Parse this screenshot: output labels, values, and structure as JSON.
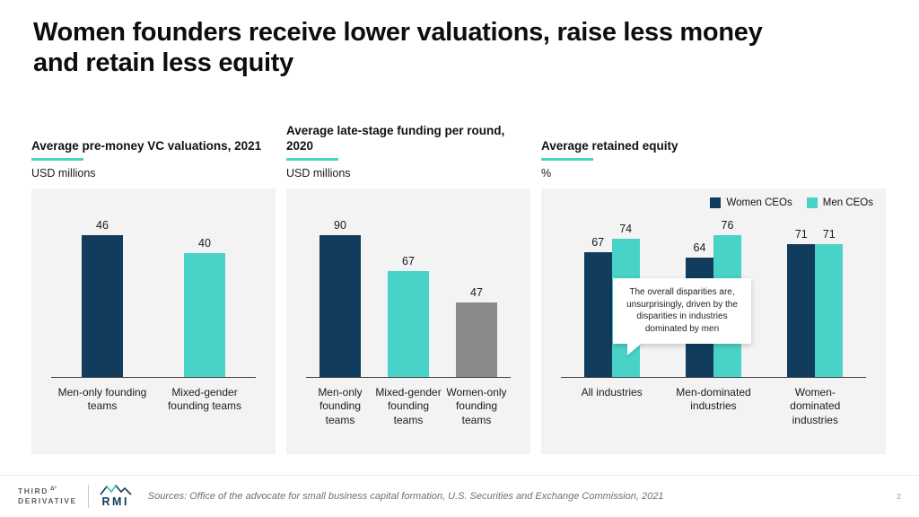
{
  "slide": {
    "title": "Women founders receive lower valuations, raise less money and retain less equity",
    "page_number": "2",
    "footer_source": "Sources: Office of the advocate for small business capital formation, U.S. Securities and Exchange Commission, 2021"
  },
  "colors": {
    "navy": "#113c5d",
    "teal": "#49d2c7",
    "gray": "#8a8a8a",
    "panel_bg": "#f3f3f3",
    "accent_underline": "#49d2c7"
  },
  "footer": {
    "logo_third_line1": "THIRD",
    "logo_third_mark": "Δ³",
    "logo_third_line2": "DERIVATIVE",
    "logo_rmi": "RMI"
  },
  "chart_data": [
    {
      "type": "bar",
      "title": "Average pre-money VC valuations, 2021",
      "unit_label": "USD millions",
      "categories": [
        "Men-only founding teams",
        "Mixed-gender founding teams"
      ],
      "values": [
        46,
        40
      ],
      "bar_colors": [
        "navy",
        "teal"
      ],
      "ylim": [
        0,
        50
      ],
      "grid": false
    },
    {
      "type": "bar",
      "title": "Average late-stage funding per round, 2020",
      "unit_label": "USD millions",
      "categories": [
        "Men-only founding teams",
        "Mixed-gender founding teams",
        "Women-only founding teams"
      ],
      "values": [
        90,
        67,
        47
      ],
      "bar_colors": [
        "navy",
        "teal",
        "gray"
      ],
      "ylim": [
        0,
        100
      ],
      "grid": false
    },
    {
      "type": "bar",
      "title": "Average retained equity",
      "unit_label": "%",
      "categories": [
        "All industries",
        "Men-dominated industries",
        "Women-dominated industries"
      ],
      "series": [
        {
          "name": "Women CEOs",
          "color": "navy",
          "values": [
            67,
            64,
            71
          ]
        },
        {
          "name": "Men CEOs",
          "color": "teal",
          "values": [
            74,
            76,
            71
          ]
        }
      ],
      "legend_position": "top-right",
      "annotation": "The overall disparities are, unsurprisingly, driven by the disparities in industries dominated by men",
      "ylim": [
        0,
        80
      ],
      "grid": false
    }
  ]
}
